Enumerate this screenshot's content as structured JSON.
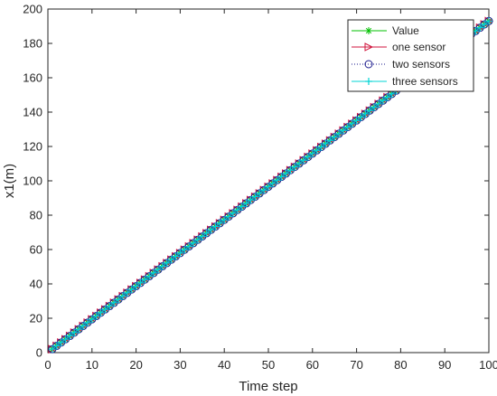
{
  "chart_data": {
    "type": "line",
    "title": "",
    "xlabel": "Time step",
    "ylabel": "x1(m)",
    "xlim": [
      0,
      100
    ],
    "ylim": [
      0,
      200
    ],
    "xticks": [
      0,
      10,
      20,
      30,
      40,
      50,
      60,
      70,
      80,
      90,
      100
    ],
    "yticks": [
      0,
      20,
      40,
      60,
      80,
      100,
      120,
      140,
      160,
      180,
      200
    ],
    "grid": false,
    "legend_position": "top-right",
    "x": {
      "start": 1,
      "end": 100,
      "step": 1
    },
    "series": [
      {
        "name": "Value",
        "color": "#00c000",
        "marker": "asterisk",
        "line": "solid",
        "y_start": 2,
        "y_end": 193
      },
      {
        "name": "one sensor",
        "color": "#d0143c",
        "marker": "triangle-right",
        "line": "solid",
        "y_start": 2,
        "y_end": 193
      },
      {
        "name": "two sensors",
        "color": "#1a1a8c",
        "marker": "circle",
        "line": "dotted",
        "y_start": 2,
        "y_end": 193
      },
      {
        "name": "three sensors",
        "color": "#00d4d4",
        "marker": "plus",
        "line": "solid",
        "y_start": 2,
        "y_end": 193
      }
    ]
  }
}
